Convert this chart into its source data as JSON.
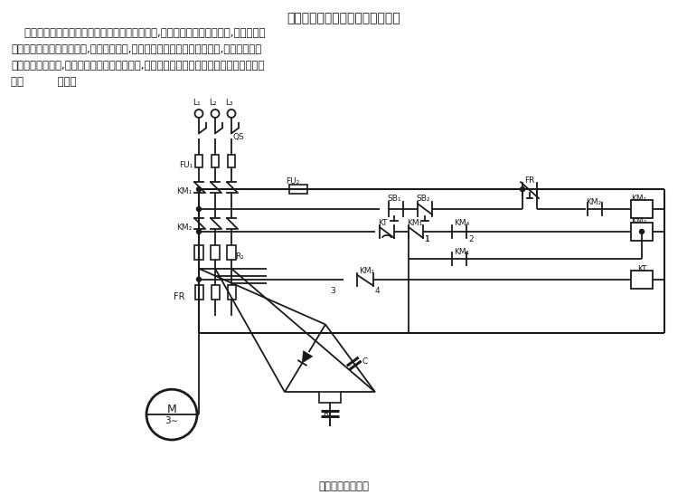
{
  "title": "三相异步电动机电容制动控制电路",
  "para1": "    电容制动是在切断三相异步电动机的交流电源后,在定子绕组上接人电容器,转子内剩磁",
  "para2": "切割定子绕组产生感应电流,向电容器充电,充电电流在定子绕组中形成磁场,该磁场与转子",
  "para3": "感应电流相互作用,产生与转向相反的制动力矩,使电动机迅速停止运转。电容制动控制电路",
  "para4": "如图          所示。",
  "caption": "电容制动控制电路",
  "bg_color": "#ffffff",
  "lc": "#1a1a1a"
}
